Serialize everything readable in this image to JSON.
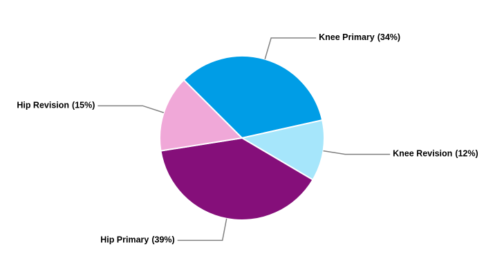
{
  "chart_data": {
    "type": "pie",
    "categories": [
      "Knee Primary",
      "Knee Revision",
      "Hip Primary",
      "Hip Revision"
    ],
    "values": [
      34,
      12,
      39,
      15
    ],
    "value_labels": [
      "(34%)",
      "(12%)",
      "(39%)",
      "(15%)"
    ],
    "colors": [
      "#009de6",
      "#a6e6fb",
      "#850f7a",
      "#f0a8d8"
    ]
  }
}
